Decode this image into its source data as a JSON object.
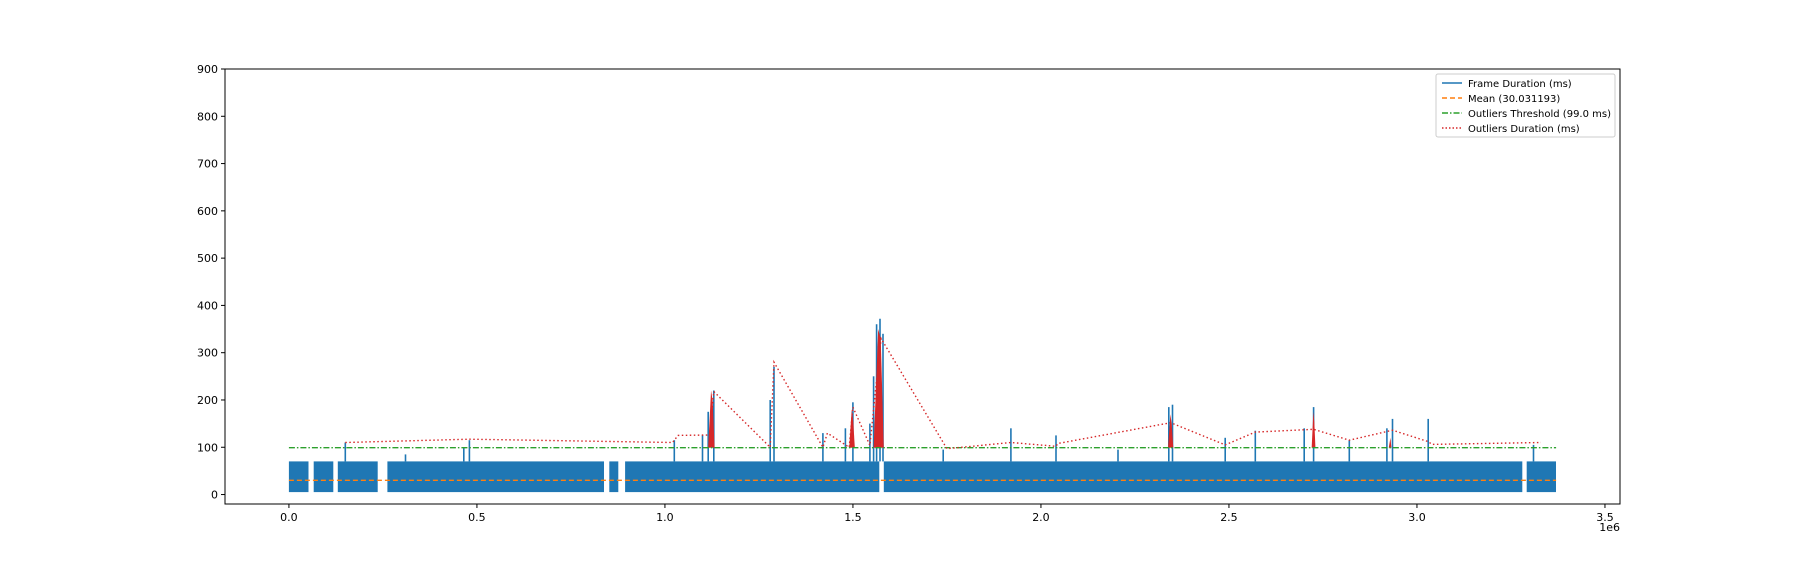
{
  "chart_data": {
    "type": "line",
    "title": "",
    "xlabel": "",
    "ylabel": "",
    "x_scale_label": "1e6",
    "xlim": [
      -170000,
      3540000
    ],
    "ylim": [
      -20,
      900
    ],
    "x_ticks": [
      0.0,
      0.5,
      1.0,
      1.5,
      2.0,
      2.5,
      3.0,
      3.5
    ],
    "x_tick_labels": [
      "0.0",
      "0.5",
      "1.0",
      "1.5",
      "2.0",
      "2.5",
      "3.0",
      "3.5"
    ],
    "y_ticks": [
      0,
      100,
      200,
      300,
      400,
      500,
      600,
      700,
      800,
      900
    ],
    "y_tick_labels": [
      "0",
      "100",
      "200",
      "300",
      "400",
      "500",
      "600",
      "700",
      "800",
      "900"
    ],
    "grid": false,
    "legend_position": "top-right",
    "legend": [
      {
        "label": "Frame Duration (ms)",
        "color": "#1f77b4",
        "style": "solid"
      },
      {
        "label": "Mean (30.031193)",
        "color": "#ff7f0e",
        "style": "dashed"
      },
      {
        "label": "Outliers Threshold (99.0 ms)",
        "color": "#2ca02c",
        "style": "dashdot"
      },
      {
        "label": "Outliers Duration (ms)",
        "color": "#d62728",
        "style": "dotted"
      }
    ],
    "frame_duration": {
      "x_range": [
        0,
        3370000
      ],
      "base_band_ms": [
        5,
        70
      ],
      "gaps": [
        [
          52000,
          66000
        ],
        [
          118000,
          130000
        ],
        [
          236000,
          262000
        ],
        [
          838000,
          852000
        ],
        [
          876000,
          894000
        ],
        [
          1570000,
          1582000
        ],
        [
          3280000,
          3292000
        ]
      ],
      "spikes": [
        [
          150000,
          110
        ],
        [
          310000,
          85
        ],
        [
          465000,
          100
        ],
        [
          480000,
          115
        ],
        [
          1025000,
          115
        ],
        [
          1100000,
          125
        ],
        [
          1115000,
          175
        ],
        [
          1130000,
          220
        ],
        [
          1280000,
          200
        ],
        [
          1290000,
          270
        ],
        [
          1420000,
          130
        ],
        [
          1480000,
          140
        ],
        [
          1500000,
          195
        ],
        [
          1545000,
          150
        ],
        [
          1555000,
          250
        ],
        [
          1563000,
          360
        ],
        [
          1572000,
          372
        ],
        [
          1580000,
          340
        ],
        [
          1740000,
          95
        ],
        [
          1920000,
          140
        ],
        [
          2040000,
          125
        ],
        [
          2205000,
          95
        ],
        [
          2340000,
          185
        ],
        [
          2350000,
          190
        ],
        [
          2490000,
          120
        ],
        [
          2570000,
          135
        ],
        [
          2700000,
          140
        ],
        [
          2725000,
          185
        ],
        [
          2820000,
          115
        ],
        [
          2920000,
          140
        ],
        [
          2935000,
          160
        ],
        [
          3030000,
          160
        ],
        [
          3310000,
          105
        ]
      ]
    },
    "mean_ms": 30.031193,
    "threshold_ms": 99.0,
    "outliers_duration": [
      [
        150000,
        110
      ],
      [
        480000,
        117
      ],
      [
        1020000,
        110
      ],
      [
        1035000,
        125
      ],
      [
        1120000,
        126
      ],
      [
        1130000,
        218
      ],
      [
        1280000,
        100
      ],
      [
        1290000,
        280
      ],
      [
        1420000,
        100
      ],
      [
        1432000,
        130
      ],
      [
        1490000,
        100
      ],
      [
        1500000,
        185
      ],
      [
        1545000,
        104
      ],
      [
        1560000,
        220
      ],
      [
        1575000,
        330
      ],
      [
        1750000,
        97
      ],
      [
        1920000,
        110
      ],
      [
        2040000,
        102
      ],
      [
        2045000,
        108
      ],
      [
        2345000,
        152
      ],
      [
        2490000,
        105
      ],
      [
        2570000,
        132
      ],
      [
        2725000,
        138
      ],
      [
        2820000,
        115
      ],
      [
        2935000,
        136
      ],
      [
        3030000,
        112
      ],
      [
        3040000,
        106
      ],
      [
        3330000,
        110
      ]
    ],
    "red_fill_regions": [
      [
        1115000,
        1132000,
        220
      ],
      [
        1490000,
        1505000,
        180
      ],
      [
        1555000,
        1582000,
        350
      ],
      [
        2338000,
        2352000,
        170
      ],
      [
        2720000,
        2730000,
        175
      ],
      [
        2925000,
        2935000,
        120
      ]
    ]
  }
}
